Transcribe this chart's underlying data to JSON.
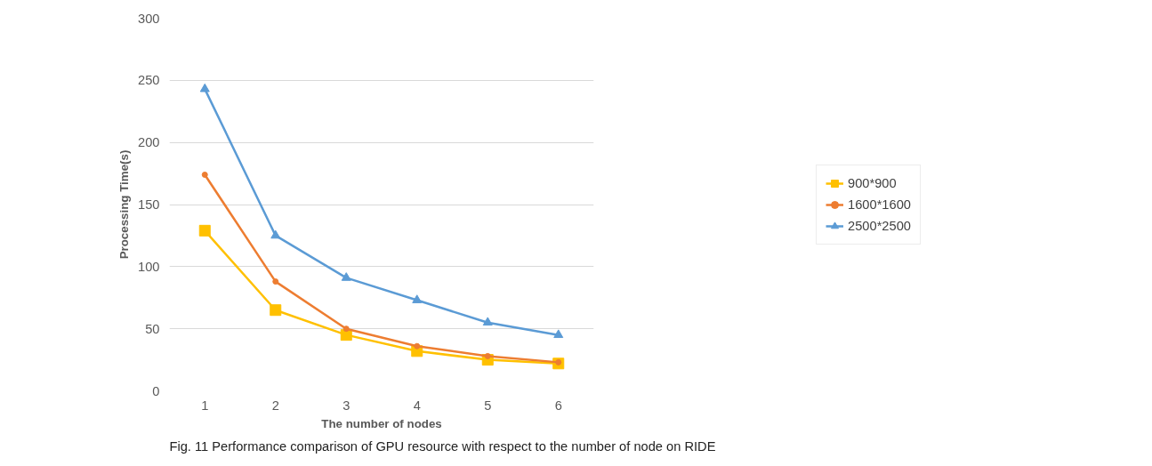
{
  "chart_data": {
    "type": "line",
    "xlabel": "The number of nodes",
    "ylabel": "Processing Time(s)",
    "categories": [
      "1",
      "2",
      "3",
      "4",
      "5",
      "6"
    ],
    "series": [
      {
        "name": "900*900",
        "color": "#ffc000",
        "marker": "square",
        "values": [
          129,
          65,
          45,
          32,
          25,
          22
        ]
      },
      {
        "name": "1600*1600",
        "color": "#ed7d31",
        "marker": "circle",
        "values": [
          174,
          88,
          50,
          36,
          28,
          23
        ]
      },
      {
        "name": "2500*2500",
        "color": "#5b9bd5",
        "marker": "triangle",
        "values": [
          243,
          125,
          91,
          73,
          55,
          45
        ]
      }
    ],
    "ylim": [
      0,
      300
    ],
    "yticks": [
      0,
      50,
      100,
      150,
      200,
      250,
      300
    ],
    "grid": "y",
    "legend": "right",
    "line_style": "solid",
    "annotations": [
      "Fig. 11 Performance comparison of GPU resource with respect to the number of node on RIDE"
    ]
  }
}
